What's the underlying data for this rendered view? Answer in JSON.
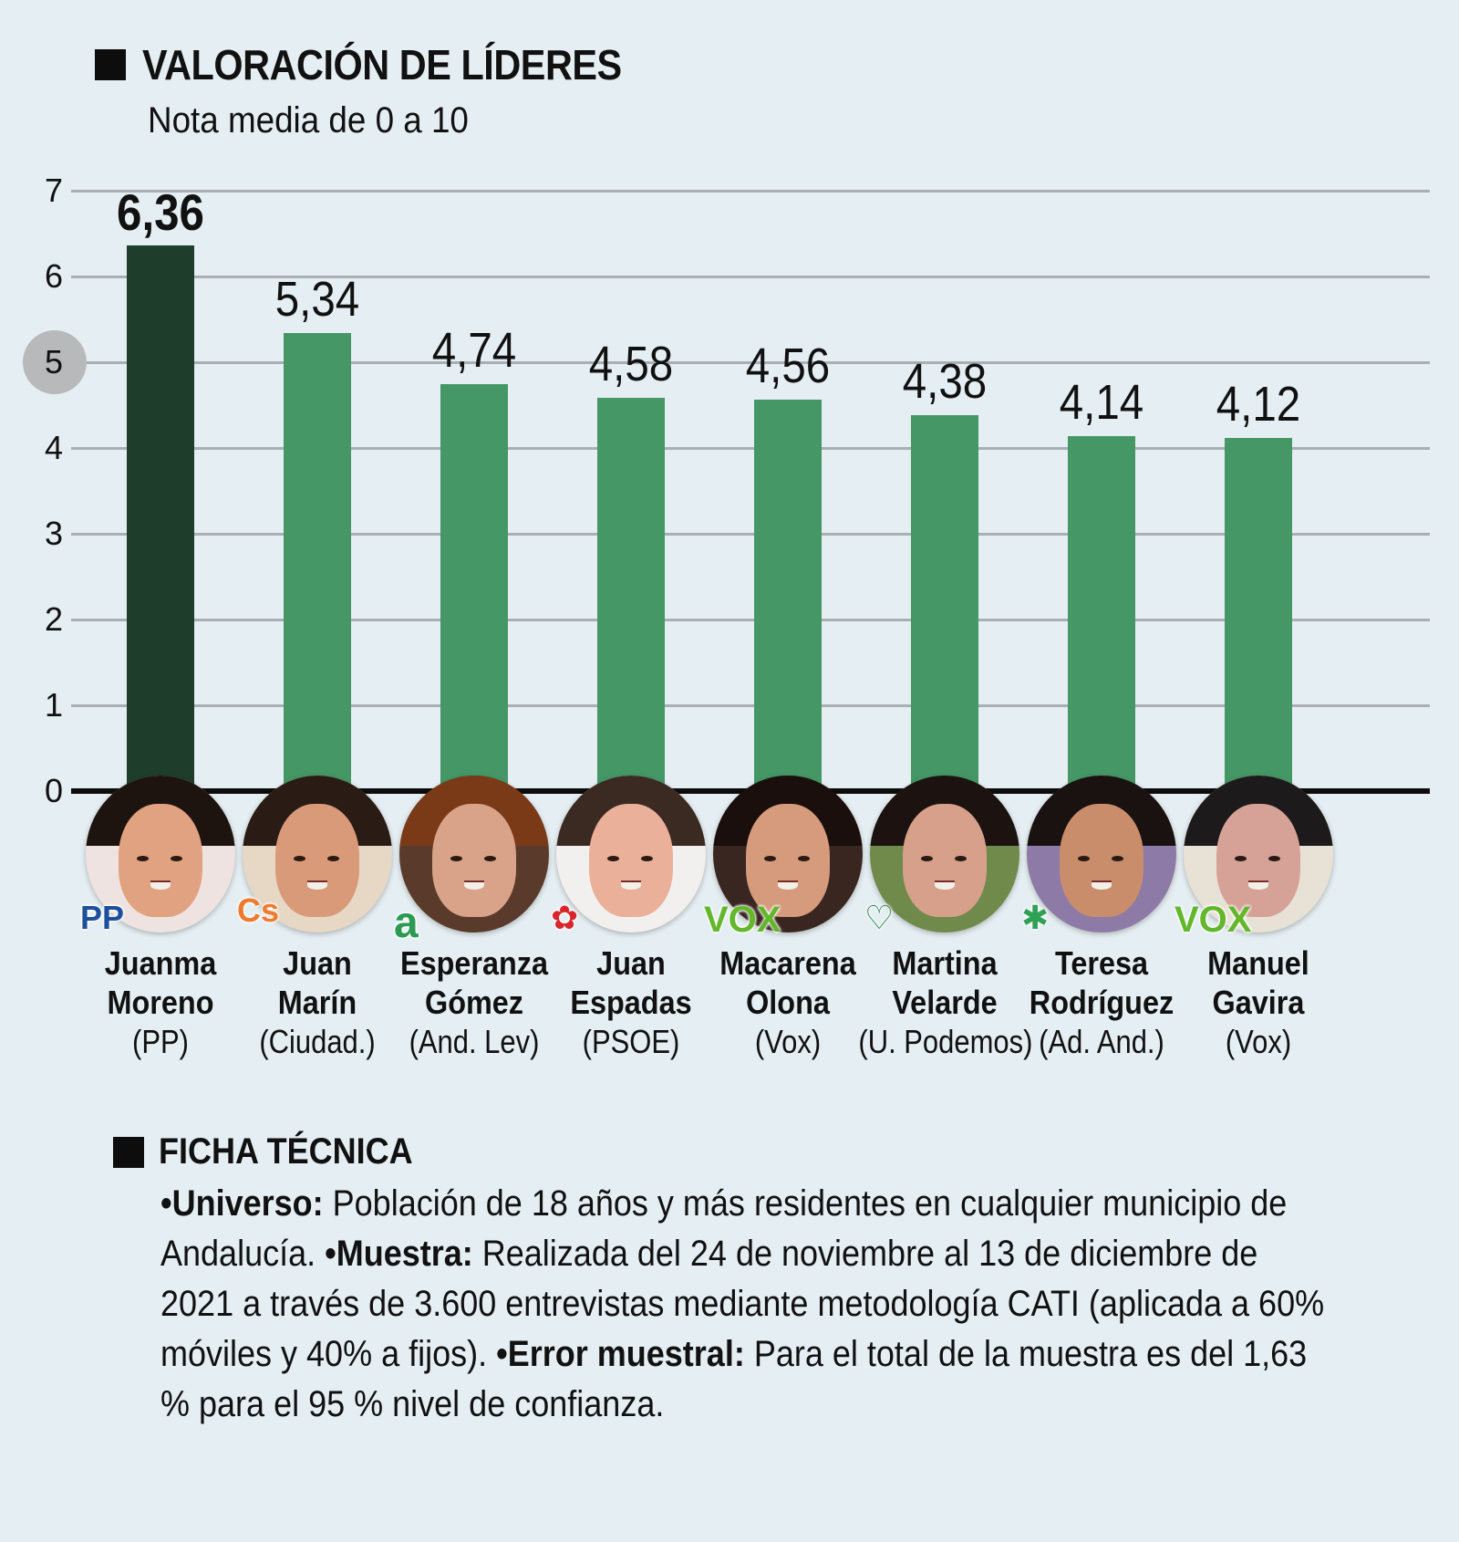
{
  "header": {
    "title": "VALORACIÓN DE LÍDERES",
    "subtitle": "Nota media de 0 a 10"
  },
  "axis": {
    "ticks": [
      "0",
      "1",
      "2",
      "3",
      "4",
      "5",
      "6",
      "7"
    ],
    "highlighted_tick": "5"
  },
  "candidates": [
    {
      "first": "Juanma",
      "last": "Moreno",
      "party": "(PP)",
      "value": "6,36",
      "logo": "PP",
      "logo_color": "#1d4f9c"
    },
    {
      "first": "Juan",
      "last": "Marín",
      "party": "(Ciudad.)",
      "value": "5,34",
      "logo": "Cs",
      "logo_color": "#ee7a2c"
    },
    {
      "first": "Esperanza",
      "last": "Gómez",
      "party": "(And. Lev)",
      "value": "4,74",
      "logo": "a",
      "logo_color": "#2b9a52"
    },
    {
      "first": "Juan",
      "last": "Espadas",
      "party": "(PSOE)",
      "value": "4,58",
      "logo": "✿",
      "logo_color": "#d9262b"
    },
    {
      "first": "Macarena",
      "last": "Olona",
      "party": "(Vox)",
      "value": "4,56",
      "logo": "VOX",
      "logo_color": "#63b72b"
    },
    {
      "first": "Martina",
      "last": "Velarde",
      "party": "(U. Podemos)",
      "value": "4,38",
      "logo": "♡",
      "logo_color": "#2f8a4c"
    },
    {
      "first": "Teresa",
      "last": "Rodríguez",
      "party": "(Ad. And.)",
      "value": "4,14",
      "logo": "✱",
      "logo_color": "#2fa156"
    },
    {
      "first": "Manuel",
      "last": "Gavira",
      "party": "(Vox)",
      "value": "4,12",
      "logo": "VOX",
      "logo_color": "#63b72b"
    }
  ],
  "colors": {
    "background": "#e5eef2",
    "bar_highlight": "#1e3d2a",
    "bar_normal": "#459766",
    "gridline": "#a9b0b3",
    "tick_circle": "#b8b9ba"
  },
  "ficha": {
    "title": "FICHA TÉCNICA",
    "universo_label": "•Universo:",
    "universo_text": " Población de 18 años y más residentes en cualquier municipio de Andalucía. ",
    "muestra_label": "•Muestra:",
    "muestra_text": " Realizada del 24 de noviembre al 13 de diciembre de 2021 a través de 3.600 entrevistas mediante metodología CATI (aplicada a 60% móviles y 40% a fijos). ",
    "error_label": "•Error muestral:",
    "error_text": " Para el total de la muestra es del 1,63 % para el 95 % nivel de confianza."
  },
  "chart_data": {
    "type": "bar",
    "title": "VALORACIÓN DE LÍDERES",
    "subtitle": "Nota media de 0 a 10",
    "categories": [
      "Juanma Moreno (PP)",
      "Juan Marín (Ciudad.)",
      "Esperanza Gómez (And. Lev)",
      "Juan Espadas (PSOE)",
      "Macarena Olona (Vox)",
      "Martina Velarde (U. Podemos)",
      "Teresa Rodríguez (Ad. And.)",
      "Manuel Gavira (Vox)"
    ],
    "values": [
      6.36,
      5.34,
      4.74,
      4.58,
      4.56,
      4.38,
      4.14,
      4.12
    ],
    "xlabel": "",
    "ylabel": "",
    "ylim": [
      0,
      7
    ],
    "yticks": [
      0,
      1,
      2,
      3,
      4,
      5,
      6,
      7
    ],
    "grid": true,
    "highlighted_category": "Juanma Moreno (PP)",
    "annotations": [
      "Tick 5 circled"
    ]
  }
}
